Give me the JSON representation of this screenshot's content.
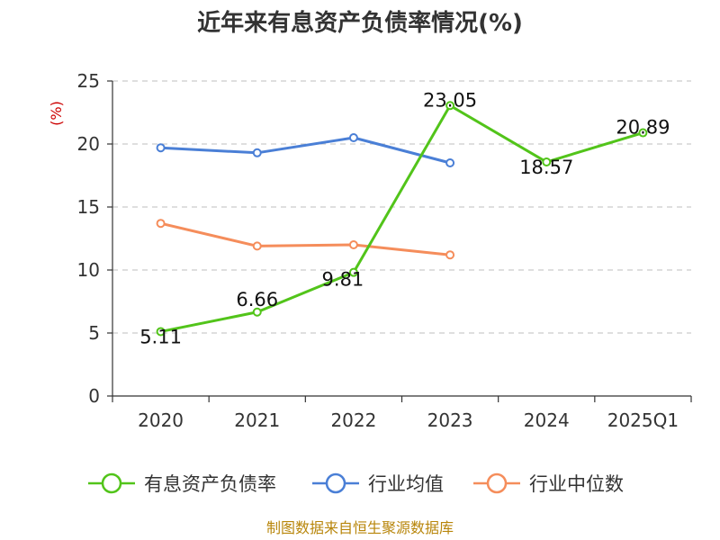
{
  "chart_data": {
    "type": "line",
    "title": "近年来有息资产负债率情况(%)",
    "y_unit": "(%)",
    "categories": [
      "2020",
      "2021",
      "2022",
      "2023",
      "2024",
      "2025Q1"
    ],
    "y_ticks": [
      "0",
      "5",
      "10",
      "15",
      "20",
      "25"
    ],
    "ylim": [
      0,
      25
    ],
    "grid": true,
    "legend_position": "bottom",
    "series": [
      {
        "name": "有息资产负债率",
        "color": "#52c41a",
        "values": [
          5.11,
          6.66,
          9.81,
          23.05,
          18.57,
          20.89
        ],
        "labels": [
          "5.11",
          "6.66",
          "9.81",
          "23.05",
          "18.57",
          "20.89"
        ]
      },
      {
        "name": "行业均值",
        "color": "#4a7fd6",
        "values": [
          19.7,
          19.3,
          20.5,
          18.5,
          null,
          null
        ]
      },
      {
        "name": "行业中位数",
        "color": "#f58d5b",
        "values": [
          13.7,
          11.9,
          12.0,
          11.2,
          null,
          null
        ]
      }
    ],
    "source": "制图数据来自恒生聚源数据库"
  }
}
